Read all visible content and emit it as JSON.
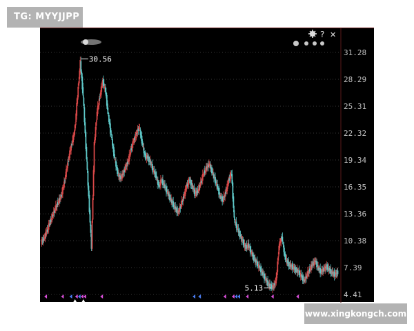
{
  "watermark_top": "TG: MYYJJPP",
  "watermark_bottom": "www.xingkongch.com",
  "toolbar": {
    "settings_icon": "gear-icon",
    "help_label": "?",
    "close_label": "✕"
  },
  "colors": {
    "background": "#000000",
    "gridline": "#3a3a3a",
    "up_candle": "#d94848",
    "down_candle": "#5ec8c8",
    "axis_text": "#c0c0c0",
    "annotation": "#ffffff",
    "marker_pink": "#d84fd8",
    "marker_blue": "#4a7cf0",
    "marker_white": "#ffffff"
  },
  "chart_data": {
    "type": "candlestick",
    "y_ticks": [
      "31.28",
      "28.29",
      "25.31",
      "22.32",
      "19.34",
      "16.35",
      "13.36",
      "10.38",
      "7.39",
      "4.41"
    ],
    "ylim": [
      4.41,
      31.28
    ],
    "grid": true,
    "max_annotation": {
      "label": "30.56",
      "value": 30.56
    },
    "min_annotation": {
      "label": "5.13",
      "value": 5.13
    },
    "close_path": [
      10.2,
      10.6,
      11.4,
      12.3,
      13.1,
      13.9,
      14.6,
      15.2,
      16.4,
      18.1,
      19.8,
      21.2,
      22.6,
      26.4,
      30.2,
      26.5,
      20.8,
      15.2,
      9.6,
      21.1,
      24.7,
      26.4,
      28.1,
      27.0,
      24.2,
      22.1,
      20.0,
      18.3,
      17.3,
      17.6,
      18.4,
      19.1,
      20.4,
      21.4,
      22.2,
      23.0,
      21.4,
      19.8,
      19.6,
      19.1,
      18.2,
      17.6,
      16.4,
      17.1,
      16.5,
      15.8,
      15.1,
      14.5,
      13.9,
      13.5,
      14.4,
      15.3,
      16.5,
      17.1,
      16.4,
      15.6,
      15.9,
      16.8,
      17.8,
      18.4,
      18.9,
      18.1,
      17.2,
      16.3,
      15.2,
      14.9,
      15.8,
      17.1,
      17.9,
      12.7,
      11.8,
      11.0,
      10.3,
      9.6,
      9.9,
      9.1,
      8.4,
      7.9,
      7.4,
      6.8,
      6.2,
      5.6,
      5.3,
      5.2,
      6.1,
      9.8,
      10.8,
      8.7,
      7.9,
      7.6,
      7.4,
      7.1,
      6.9,
      6.4,
      5.9,
      6.6,
      7.2,
      7.8,
      8.1,
      7.3,
      6.9,
      7.2,
      7.5,
      7.1,
      6.8,
      6.6,
      6.9
    ],
    "signal_markers": [
      {
        "index": 1,
        "color": "pink"
      },
      {
        "index": 7,
        "color": "pink"
      },
      {
        "index": 10,
        "color": "blue"
      },
      {
        "index": 12,
        "color": "pink"
      },
      {
        "index": 13,
        "color": "blue"
      },
      {
        "index": 14,
        "color": "pink"
      },
      {
        "index": 15,
        "color": "pink"
      },
      {
        "index": 21,
        "color": "pink"
      },
      {
        "index": 54,
        "color": "blue"
      },
      {
        "index": 56,
        "color": "blue"
      },
      {
        "index": 65,
        "color": "pink"
      },
      {
        "index": 68,
        "color": "pink"
      },
      {
        "index": 69,
        "color": "blue"
      },
      {
        "index": 70,
        "color": "blue"
      },
      {
        "index": 73,
        "color": "pink"
      },
      {
        "index": 82,
        "color": "pink"
      },
      {
        "index": 91,
        "color": "pink"
      }
    ],
    "buy_markers": [
      {
        "index": 12
      },
      {
        "index": 15
      }
    ]
  }
}
